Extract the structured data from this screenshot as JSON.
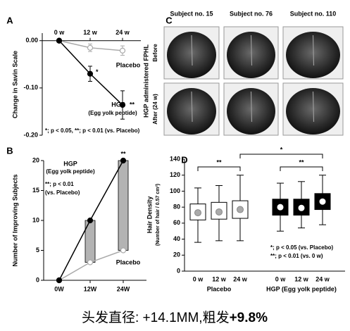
{
  "chart_data": [
    {
      "type": "line",
      "panel": "A",
      "ylabel": "Change in Savin Scale",
      "x_axis_position": "top",
      "categories": [
        "0 w",
        "12 w",
        "24 w"
      ],
      "ylim": [
        -0.2,
        0.016
      ],
      "yticks": [
        {
          "value": 0,
          "label": "0.00"
        },
        {
          "value": -0.1,
          "label": "-0.10"
        },
        {
          "value": -0.2,
          "label": "-0.20"
        }
      ],
      "series": [
        {
          "name": "Placebo",
          "color": "#aaaaaa",
          "marker_fill": "#ffffff",
          "values": [
            0,
            -0.015,
            -0.021
          ],
          "errors": [
            0,
            0.008,
            0.01
          ],
          "point_labels": [
            null,
            null,
            null
          ]
        },
        {
          "name": "HGP",
          "name_note": "(Egg yolk peptide)",
          "color": "#000000",
          "marker_fill": "#000000",
          "values": [
            0,
            -0.07,
            -0.136
          ],
          "errors": [
            0,
            0.016,
            0.03
          ],
          "point_labels": [
            null,
            "*",
            "**"
          ]
        }
      ],
      "notes": [
        "*; p < 0.05, **; p < 0.01 (vs. Placebo)"
      ]
    },
    {
      "type": "line",
      "panel": "B",
      "ylabel": "Number of Improving Subjects",
      "x_axis_position": "bottom",
      "categories": [
        "0W",
        "12W",
        "24W"
      ],
      "ylim": [
        0,
        20
      ],
      "yticks": [
        0,
        5,
        10,
        15,
        20
      ],
      "difference_bars": true,
      "bar_color": "#b3b3b3",
      "series": [
        {
          "name": "Placebo",
          "color": "#aaaaaa",
          "marker_fill": "#ffffff",
          "values": [
            0,
            3,
            5
          ],
          "point_labels": [
            null,
            null,
            null
          ]
        },
        {
          "name": "HGP",
          "name_note": "(Egg yolk peptide)",
          "color": "#000000",
          "marker_fill": "#000000",
          "values": [
            0,
            10,
            20
          ],
          "point_labels": [
            null,
            null,
            "**"
          ]
        }
      ],
      "notes": [
        "**; p < 0.01",
        "(vs. Placebo)"
      ]
    },
    {
      "type": "box",
      "panel": "D",
      "ylabel": [
        "Hair Density",
        "(Number of hair / 0.57 cm²)"
      ],
      "ylim": [
        0,
        140
      ],
      "yticks": [
        0,
        20,
        40,
        60,
        80,
        100,
        120,
        140
      ],
      "series": [
        {
          "name": "Placebo",
          "box_color": "#ffffff",
          "center_color": "#aaaaaa",
          "categories": [
            "0 w",
            "12 w",
            "24 w"
          ],
          "min": [
            36,
            38,
            38
          ],
          "q1": [
            64,
            65,
            66
          ],
          "center": [
            73,
            74,
            77
          ],
          "q3": [
            84,
            86,
            88
          ],
          "max": [
            104,
            107,
            120
          ]
        },
        {
          "name": "HGP (Egg yolk peptide)",
          "box_color": "#000000",
          "center_color": "#ffffff",
          "categories": [
            "0 w",
            "12 w",
            "24 w"
          ],
          "min": [
            50,
            54,
            58
          ],
          "q1": [
            70,
            70,
            77
          ],
          "center": [
            80,
            79,
            87
          ],
          "q3": [
            90,
            90,
            97
          ],
          "max": [
            110,
            112,
            120
          ]
        }
      ],
      "significance": [
        "**",
        "*",
        "**"
      ],
      "notes": [
        "*; p < 0.05 (vs. Placebo)",
        "**; p < 0.01 (vs. 0 w)"
      ]
    }
  ],
  "photo_panel": {
    "panel": "C",
    "side_label": "HGP administered FPHL",
    "columns": [
      "Subject no. 15",
      "Subject no. 76",
      "Subject no. 110"
    ],
    "rows": [
      "Before",
      "After (24 w)"
    ]
  },
  "caption": {
    "text": "头发直径: +14.1MM,粗发",
    "bold": "+9.8%"
  }
}
